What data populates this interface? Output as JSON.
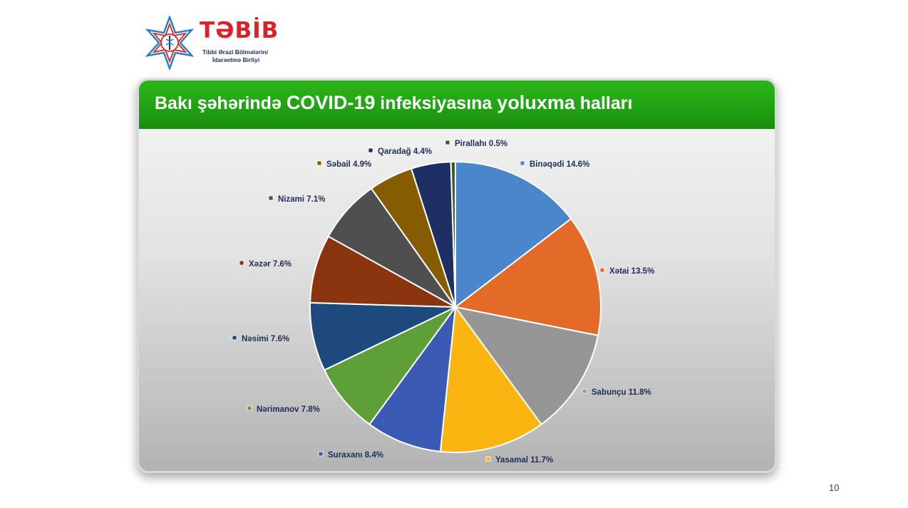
{
  "logo": {
    "name": "TƏBİB",
    "subtitle_line1": "Tibbi Ərazi Bölmələrini",
    "subtitle_line2": "İdarəetmə Birliyi"
  },
  "title_parts": [
    "Bakı şəhərində ",
    "COVID-19",
    " infeksiyasına ",
    "yoluxma",
    " halları"
  ],
  "page_number": "10",
  "colors": {
    "header_green": "#21a013",
    "logo_red": "#d9232a",
    "label_text": "#1f2d57"
  },
  "chart_data": {
    "type": "pie",
    "title": "Bakı şəhərində COVID-19 infeksiyasına yoluxma halları",
    "legend": "none",
    "slices": [
      {
        "label": "Binəqədi",
        "value": 14.6,
        "text": "Binəqədi 14.6%",
        "color": "#4a86cc"
      },
      {
        "label": "Xətai",
        "value": 13.5,
        "text": "Xətai 13.5%",
        "color": "#e36a27"
      },
      {
        "label": "Sabunçu",
        "value": 11.8,
        "text": "Sabunçu 11.8%",
        "color": "#969696"
      },
      {
        "label": "Yasamal",
        "value": 11.7,
        "text": "Yasamal 11.7%",
        "color": "#fab511"
      },
      {
        "label": "Suraxanı",
        "value": 8.4,
        "text": "Suraxanı 8.4%",
        "color": "#3a5ab4"
      },
      {
        "label": "Nərimanov",
        "value": 7.8,
        "text": "Nərimanov 7.8%",
        "color": "#5e9f38"
      },
      {
        "label": "Nəsimi",
        "value": 7.6,
        "text": "Nəsimi 7.6%",
        "color": "#1d497c"
      },
      {
        "label": "Xəzər",
        "value": 7.6,
        "text": "Xəzər 7.6%",
        "color": "#8a3510"
      },
      {
        "label": "Nizami",
        "value": 7.1,
        "text": "Nizami 7.1%",
        "color": "#4f4f4f"
      },
      {
        "label": "Səbail",
        "value": 4.9,
        "text": "Səbail 4.9%",
        "color": "#855d00"
      },
      {
        "label": "Qaradağ",
        "value": 4.4,
        "text": "Qaradağ 4.4%",
        "color": "#1e2f63"
      },
      {
        "label": "Pirallahı",
        "value": 0.5,
        "text": "Pirallahı 0.5%",
        "color": "#3b6023"
      }
    ]
  }
}
